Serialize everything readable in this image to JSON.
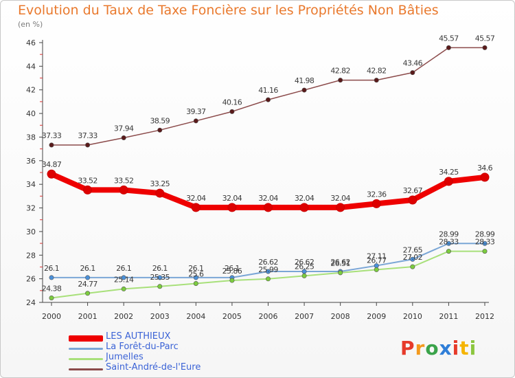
{
  "title": "Evolution du Taux de Taxe Foncière sur les Propriétés Non Bâties",
  "unit": "(en %)",
  "logo": {
    "text": "Proxiti",
    "colors": [
      "#e63a2a",
      "#f39a1e",
      "#3aa34a",
      "#2f7ed8",
      "#e63a2a",
      "#f5b400",
      "#8cc63f"
    ]
  },
  "chart_data": {
    "type": "line",
    "title": "Evolution du Taux de Taxe Foncière sur les Propriétés Non Bâties",
    "ylabel": "(en %)",
    "xlabel": "",
    "ylim": [
      24,
      46
    ],
    "yticks": [
      24,
      26,
      28,
      30,
      32,
      34,
      36,
      38,
      40,
      42,
      44,
      46
    ],
    "x": [
      "2000",
      "2001",
      "2002",
      "2003",
      "2004",
      "2005",
      "2006",
      "2007",
      "2008",
      "2009",
      "2010",
      "2011",
      "2012"
    ],
    "grid": false,
    "legend": "bottom-left",
    "series": [
      {
        "name": "LES AUTHIEUX",
        "color": "#ee0000",
        "marker": "#dd0000",
        "width": 8,
        "values": [
          34.87,
          33.52,
          33.52,
          33.25,
          32.04,
          32.04,
          32.04,
          32.04,
          32.04,
          32.36,
          32.67,
          34.25,
          34.6
        ],
        "labels": [
          "34.87",
          "33.52",
          "33.52",
          "33.25",
          "32.04",
          "32.04",
          "32.04",
          "32.04",
          "32.04",
          "32.36",
          "32.67",
          "34.25",
          "34.6"
        ]
      },
      {
        "name": "La Forêt-du-Parc",
        "color": "#7aa6d6",
        "marker": "#4a90d9",
        "width": 2,
        "values": [
          26.1,
          26.1,
          26.1,
          26.1,
          26.1,
          26.1,
          26.62,
          26.62,
          26.62,
          27.11,
          27.65,
          28.99,
          28.99
        ],
        "labels": [
          "26.1",
          "26.1",
          "26.1",
          "26.1",
          "26.1",
          "26.1",
          "26.62",
          "26.62",
          "26.62",
          "27.11",
          "27.65",
          "28.99",
          "28.99"
        ]
      },
      {
        "name": "Jumelles",
        "color": "#a8e07a",
        "marker": "#7ccc3f",
        "width": 2,
        "values": [
          24.38,
          24.77,
          25.14,
          25.35,
          25.6,
          25.86,
          25.99,
          26.25,
          26.51,
          26.77,
          27.02,
          28.33,
          28.33
        ],
        "labels": [
          "24.38",
          "24.77",
          "25.14",
          "25.35",
          "25.6",
          "25.86",
          "25.99",
          "26.25",
          "26.51",
          "26.77",
          "27.02",
          "28.33",
          "28.33"
        ]
      },
      {
        "name": "Saint-André-de-l'Eure",
        "color": "#8b4a4a",
        "marker": "#5a1a1a",
        "width": 1.5,
        "values": [
          37.33,
          37.33,
          37.94,
          38.59,
          39.37,
          40.16,
          41.16,
          41.98,
          42.82,
          42.82,
          43.46,
          45.57,
          45.57
        ],
        "labels": [
          "37.33",
          "37.33",
          "37.94",
          "38.59",
          "39.37",
          "40.16",
          "41.16",
          "41.98",
          "42.82",
          "42.82",
          "43.46",
          "45.57",
          "45.57"
        ]
      }
    ]
  }
}
